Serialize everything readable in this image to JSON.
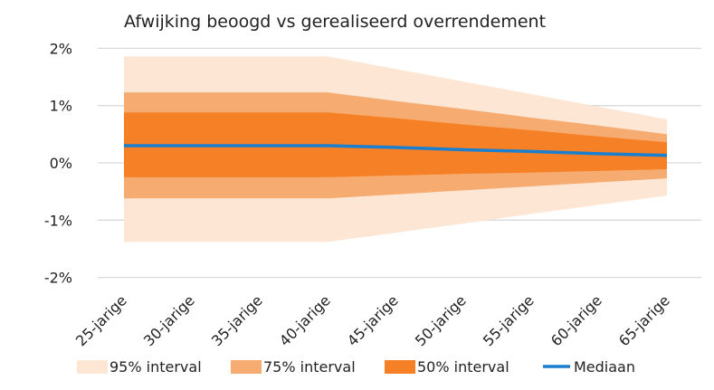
{
  "chart_data": {
    "type": "area",
    "title": "Afwijking beoogd vs gerealiseerd overrendement",
    "categories": [
      "25-jarige",
      "30-jarige",
      "35-jarige",
      "40-jarige",
      "45-jarige",
      "50-jarige",
      "55-jarige",
      "60-jarige",
      "65-jarige"
    ],
    "ylim": [
      -2,
      2
    ],
    "yticks": [
      2,
      1,
      0,
      -1,
      -2
    ],
    "ytick_labels": [
      "2%",
      "1%",
      "0%",
      "-1%",
      "-2%"
    ],
    "grid": true,
    "legend_placement": "bottom",
    "bands": [
      {
        "name": "95% interval",
        "color": "#fde6d3",
        "upper": [
          1.86,
          1.86,
          1.86,
          1.86,
          1.64,
          1.42,
          1.2,
          0.98,
          0.76
        ],
        "lower": [
          -1.38,
          -1.38,
          -1.38,
          -1.38,
          -1.22,
          -1.06,
          -0.89,
          -0.73,
          -0.57
        ]
      },
      {
        "name": "75% interval",
        "color": "#f6ab70",
        "upper": [
          1.23,
          1.23,
          1.23,
          1.23,
          1.08,
          0.94,
          0.79,
          0.65,
          0.5
        ],
        "lower": [
          -0.62,
          -0.62,
          -0.62,
          -0.62,
          -0.55,
          -0.48,
          -0.41,
          -0.34,
          -0.27
        ]
      },
      {
        "name": "50% interval",
        "color": "#f58025",
        "upper": [
          0.88,
          0.88,
          0.88,
          0.88,
          0.78,
          0.67,
          0.57,
          0.46,
          0.36
        ],
        "lower": [
          -0.25,
          -0.25,
          -0.25,
          -0.25,
          -0.22,
          -0.19,
          -0.17,
          -0.14,
          -0.11
        ]
      }
    ],
    "series": [
      {
        "name": "Mediaan",
        "color": "#1a7fcf",
        "values": [
          0.3,
          0.3,
          0.3,
          0.3,
          0.27,
          0.23,
          0.2,
          0.16,
          0.13
        ]
      }
    ]
  }
}
